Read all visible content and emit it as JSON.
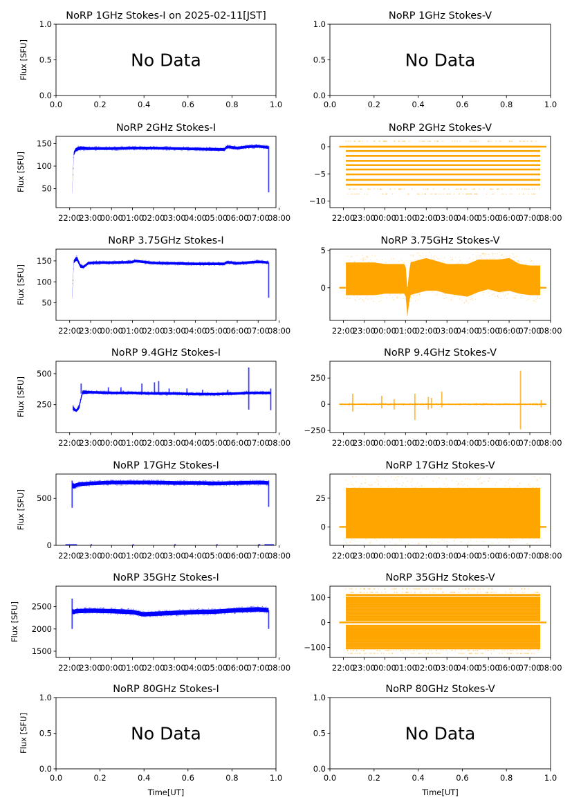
{
  "figure": {
    "x_label": "Time[UT]",
    "y_label": "Flux [SFU]",
    "no_data_text": "No Data",
    "colors": {
      "stokes_i": "#0000ff",
      "stokes_v": "#ffa500"
    }
  },
  "chart_data": [
    {
      "id": "1ghz-i",
      "type": "scatter",
      "title": "NoRP 1GHz Stokes-I on 2025-02-11[JST]",
      "no_data": true,
      "ylabel": "Flux [SFU]",
      "xlim": [
        0,
        1
      ],
      "ylim": [
        0,
        1
      ],
      "xticks": [
        0,
        0.2,
        0.4,
        0.6,
        0.8,
        1.0
      ],
      "xtick_labels": [
        "0.0",
        "0.2",
        "0.4",
        "0.6",
        "0.8",
        "1.0"
      ],
      "yticks": [
        0,
        0.5,
        1.0
      ],
      "ytick_labels": [
        "0.0",
        "0.5",
        "1.0"
      ]
    },
    {
      "id": "1ghz-v",
      "type": "scatter",
      "title": "NoRP 1GHz Stokes-V",
      "no_data": true,
      "ylabel": "",
      "xlim": [
        0,
        1
      ],
      "ylim": [
        0,
        1
      ],
      "xticks": [
        0,
        0.2,
        0.4,
        0.6,
        0.8,
        1.0
      ],
      "xtick_labels": [
        "0.0",
        "0.2",
        "0.4",
        "0.6",
        "0.8",
        "1.0"
      ],
      "yticks": [
        0,
        0.5,
        1.0
      ],
      "ytick_labels": [
        "0.0",
        "0.5",
        "1.0"
      ]
    },
    {
      "id": "2ghz-i",
      "type": "scatter",
      "title": "NoRP 2GHz Stokes-I",
      "series_color": "stokes_i",
      "ylabel": "Flux [SFU]",
      "xlim_hours": [
        21.35,
        31.85
      ],
      "ylim": [
        8,
        166
      ],
      "yticks": [
        50,
        100,
        150
      ],
      "ytick_labels": [
        "50",
        "100",
        "150"
      ],
      "band": {
        "t": [
          22.12,
          22.2,
          22.3,
          22.5,
          23,
          24,
          25,
          26,
          27,
          28,
          29,
          29.4,
          29.5,
          30,
          30.5,
          31,
          31.5
        ],
        "center": [
          40,
          130,
          137,
          140,
          139,
          139,
          140,
          140,
          139,
          138,
          137,
          137,
          143,
          140,
          143,
          144,
          141
        ],
        "halfwidth": [
          3,
          4,
          4,
          4,
          3,
          3,
          3,
          3,
          3,
          3,
          3,
          3,
          3,
          3,
          3,
          3,
          3
        ]
      },
      "spikes": [
        {
          "t": 31.5,
          "low": 42,
          "high": 144
        }
      ]
    },
    {
      "id": "2ghz-v",
      "type": "scatter",
      "title": "NoRP 2GHz Stokes-V",
      "series_color": "stokes_v",
      "ylabel": "",
      "xlim_hours": [
        21.35,
        32.0
      ],
      "ylim": [
        -11.2,
        1.9
      ],
      "yticks": [
        -10,
        -5,
        0
      ],
      "ytick_labels": [
        "−10",
        "−5",
        "0"
      ],
      "levels": [
        0,
        -0.8,
        -1.7,
        -2.6,
        -3.4,
        -4.2,
        -5.1,
        -6.1,
        -7.0
      ],
      "faint_levels": [
        1.0,
        -7.8,
        -8.7
      ],
      "zero_line": [
        21.8,
        31.8
      ],
      "data_range": [
        22.12,
        31.5
      ]
    },
    {
      "id": "3.75ghz-i",
      "type": "scatter",
      "title": "NoRP 3.75GHz Stokes-I",
      "series_color": "stokes_i",
      "ylabel": "Flux [SFU]",
      "xlim_hours": [
        21.35,
        31.85
      ],
      "ylim": [
        8,
        178
      ],
      "yticks": [
        50,
        100,
        150
      ],
      "ytick_labels": [
        "50",
        "100",
        "150"
      ],
      "band": {
        "t": [
          22.12,
          22.2,
          22.35,
          22.5,
          22.65,
          22.9,
          23.5,
          24,
          25,
          25.1,
          26,
          27,
          28,
          29,
          29.4,
          29.5,
          30,
          30.5,
          31,
          31.5
        ],
        "center": [
          62,
          150,
          156,
          138,
          135,
          145,
          146,
          146,
          147,
          150,
          145,
          144,
          143,
          143,
          143,
          147,
          144,
          146,
          148,
          146
        ],
        "halfwidth": [
          4,
          4,
          5,
          4,
          3,
          3,
          3,
          3,
          3,
          3,
          3,
          3,
          3,
          3,
          3,
          3,
          3,
          3,
          3,
          3
        ]
      },
      "spikes": [
        {
          "t": 31.5,
          "low": 62,
          "high": 146
        }
      ]
    },
    {
      "id": "3.75ghz-v",
      "type": "scatter",
      "title": "NoRP 3.75GHz Stokes-V",
      "series_color": "stokes_v",
      "ylabel": "",
      "xlim_hours": [
        21.35,
        32.0
      ],
      "ylim": [
        -4.4,
        5.2
      ],
      "yticks": [
        0,
        5
      ],
      "ytick_labels": [
        "0",
        "5"
      ],
      "band": {
        "t": [
          22.12,
          23.5,
          24,
          25,
          25.1,
          25.2,
          26,
          26.5,
          27,
          28,
          28.5,
          29,
          29.5,
          30,
          30.5,
          31,
          31.5
        ],
        "center": [
          1.2,
          1.2,
          1.2,
          1.2,
          -2.5,
          1.2,
          1.8,
          1.6,
          1.2,
          1.0,
          1.6,
          1.8,
          1.6,
          1.8,
          1.2,
          1.0,
          1.0
        ],
        "halfwidth": [
          2.2,
          2.2,
          2.0,
          2.0,
          1.8,
          2.2,
          2.2,
          2.0,
          2.0,
          2.2,
          2.2,
          2.0,
          2.2,
          2.2,
          2.0,
          2.0,
          2.0
        ]
      },
      "zero_line": [
        21.8,
        31.8
      ]
    },
    {
      "id": "9.4ghz-i",
      "type": "scatter",
      "title": "NoRP 9.4GHz Stokes-I",
      "series_color": "stokes_i",
      "ylabel": "Flux [SFU]",
      "xlim_hours": [
        21.35,
        31.85
      ],
      "ylim": [
        25,
        600
      ],
      "yticks": [
        250,
        500
      ],
      "ytick_labels": [
        "250",
        "500"
      ],
      "band": {
        "t": [
          22.15,
          22.3,
          22.45,
          22.6,
          23,
          24,
          25,
          26,
          27,
          28,
          29,
          30,
          30.5,
          31,
          31.6
        ],
        "center": [
          225,
          200,
          225,
          350,
          350,
          345,
          345,
          340,
          340,
          335,
          335,
          340,
          345,
          345,
          345
        ],
        "halfwidth": [
          20,
          8,
          18,
          15,
          10,
          10,
          10,
          10,
          10,
          10,
          10,
          10,
          10,
          10,
          10
        ]
      },
      "spikes": [
        {
          "t": 22.55,
          "low": 340,
          "high": 420
        },
        {
          "t": 23.85,
          "low": 340,
          "high": 390
        },
        {
          "t": 24.45,
          "low": 340,
          "high": 390
        },
        {
          "t": 25.45,
          "low": 340,
          "high": 420
        },
        {
          "t": 26.05,
          "low": 340,
          "high": 430
        },
        {
          "t": 26.25,
          "low": 340,
          "high": 440
        },
        {
          "t": 26.75,
          "low": 340,
          "high": 380
        },
        {
          "t": 27.6,
          "low": 340,
          "high": 380
        },
        {
          "t": 28.35,
          "low": 340,
          "high": 370
        },
        {
          "t": 29.55,
          "low": 340,
          "high": 370
        },
        {
          "t": 30.55,
          "low": 210,
          "high": 550
        },
        {
          "t": 31.6,
          "low": 205,
          "high": 380
        }
      ]
    },
    {
      "id": "9.4ghz-v",
      "type": "scatter",
      "title": "NoRP 9.4GHz Stokes-V",
      "series_color": "stokes_v",
      "ylabel": "",
      "xlim_hours": [
        21.35,
        32.0
      ],
      "ylim": [
        -270,
        410
      ],
      "yticks": [
        -250,
        0,
        250
      ],
      "ytick_labels": [
        "−250",
        "0",
        "250"
      ],
      "band": {
        "t": [
          21.8,
          31.8
        ],
        "center": [
          0,
          0
        ],
        "halfwidth": [
          6,
          6
        ]
      },
      "spikes": [
        {
          "t": 22.45,
          "low": -70,
          "high": 100
        },
        {
          "t": 23.85,
          "low": -40,
          "high": 80
        },
        {
          "t": 24.45,
          "low": -50,
          "high": 50
        },
        {
          "t": 25.45,
          "low": -150,
          "high": 100
        },
        {
          "t": 26.1,
          "low": -50,
          "high": 70
        },
        {
          "t": 26.25,
          "low": -40,
          "high": 60
        },
        {
          "t": 26.75,
          "low": -30,
          "high": 120
        },
        {
          "t": 30.55,
          "low": -240,
          "high": 320
        },
        {
          "t": 31.55,
          "low": -30,
          "high": 40
        }
      ]
    },
    {
      "id": "17ghz-i",
      "type": "scatter",
      "title": "NoRP 17GHz Stokes-I",
      "series_color": "stokes_i",
      "ylabel": "Flux [SFU]",
      "xlim_hours": [
        21.35,
        31.85
      ],
      "ylim": [
        0,
        760
      ],
      "yticks": [
        0,
        500
      ],
      "ytick_labels": [
        "0",
        "500"
      ],
      "band": {
        "t": [
          22.12,
          22.2,
          22.4,
          23,
          24,
          25,
          26,
          27,
          28,
          29,
          30,
          31,
          31.5
        ],
        "center": [
          640,
          630,
          650,
          660,
          670,
          670,
          670,
          665,
          665,
          660,
          665,
          670,
          665
        ],
        "halfwidth": [
          30,
          25,
          20,
          20,
          20,
          20,
          20,
          20,
          20,
          20,
          20,
          20,
          20
        ]
      },
      "spikes": [
        {
          "t": 22.12,
          "low": 400,
          "high": 690
        },
        {
          "t": 31.5,
          "low": 410,
          "high": 690
        }
      ],
      "zero_marks": [
        [
          21.8,
          22.35
        ],
        [
          23.0,
          23.05
        ],
        [
          25.0,
          25.05
        ],
        [
          27.0,
          27.05
        ],
        [
          29.0,
          29.05
        ],
        [
          31.0,
          31.1
        ],
        [
          31.3,
          31.75
        ]
      ]
    },
    {
      "id": "17ghz-v",
      "type": "scatter",
      "title": "NoRP 17GHz Stokes-V",
      "series_color": "stokes_v",
      "ylabel": "",
      "xlim_hours": [
        21.35,
        32.0
      ],
      "ylim": [
        -16,
        46
      ],
      "yticks": [
        0,
        25
      ],
      "ytick_labels": [
        "0",
        "25"
      ],
      "band": {
        "t": [
          22.12,
          31.5
        ],
        "center": [
          12,
          12
        ],
        "halfwidth": [
          22,
          22
        ]
      },
      "zero_line": [
        21.8,
        31.8
      ]
    },
    {
      "id": "35ghz-i",
      "type": "scatter",
      "title": "NoRP 35GHz Stokes-I",
      "series_color": "stokes_i",
      "ylabel": "Flux [SFU]",
      "xlim_hours": [
        21.35,
        31.85
      ],
      "ylim": [
        1360,
        2960
      ],
      "yticks": [
        1500,
        2000,
        2500
      ],
      "ytick_labels": [
        "1500",
        "2000",
        "2500"
      ],
      "band": {
        "t": [
          22.12,
          22.2,
          22.3,
          23,
          24,
          25,
          25.5,
          26,
          27,
          28,
          29,
          30,
          31,
          31.5
        ],
        "center": [
          2400,
          2380,
          2400,
          2410,
          2400,
          2380,
          2330,
          2340,
          2360,
          2380,
          2390,
          2420,
          2440,
          2420
        ],
        "halfwidth": [
          60,
          50,
          50,
          50,
          50,
          50,
          50,
          50,
          50,
          50,
          50,
          50,
          50,
          50
        ]
      },
      "spikes": [
        {
          "t": 22.12,
          "low": 2000,
          "high": 2680
        },
        {
          "t": 31.5,
          "low": 2000,
          "high": 2420
        }
      ]
    },
    {
      "id": "35ghz-v",
      "type": "scatter",
      "title": "NoRP 35GHz Stokes-V",
      "series_color": "stokes_v",
      "ylabel": "",
      "xlim_hours": [
        21.35,
        32.0
      ],
      "ylim": [
        -140,
        145
      ],
      "yticks": [
        -100,
        0,
        100
      ],
      "ytick_labels": [
        "−100",
        "0",
        "100"
      ],
      "levels": [
        110,
        100,
        93,
        86,
        79,
        72,
        65,
        58,
        51,
        44,
        37,
        30,
        23,
        16,
        9,
        -13,
        -20,
        -27,
        -34,
        -41,
        -48,
        -55,
        -62,
        -69,
        -76,
        -83,
        -90,
        -97,
        -104
      ],
      "faint_levels": [
        120,
        134,
        -113,
        -124
      ],
      "zero_line": [
        21.8,
        31.8
      ],
      "data_range": [
        22.12,
        31.5
      ]
    },
    {
      "id": "80ghz-i",
      "type": "scatter",
      "title": "NoRP 80GHz Stokes-I",
      "no_data": true,
      "ylabel": "Flux [SFU]",
      "xlabel": "Time[UT]",
      "xlim": [
        0,
        1
      ],
      "ylim": [
        0,
        1
      ],
      "xticks": [
        0,
        0.2,
        0.4,
        0.6,
        0.8,
        1.0
      ],
      "xtick_labels": [
        "0.0",
        "0.2",
        "0.4",
        "0.6",
        "0.8",
        "1.0"
      ],
      "yticks": [
        0,
        0.5,
        1.0
      ],
      "ytick_labels": [
        "0.0",
        "0.5",
        "1.0"
      ]
    },
    {
      "id": "80ghz-v",
      "type": "scatter",
      "title": "NoRP 80GHz Stokes-V",
      "no_data": true,
      "ylabel": "",
      "xlabel": "Time[UT]",
      "xlim": [
        0,
        1
      ],
      "ylim": [
        0,
        1
      ],
      "xticks": [
        0,
        0.2,
        0.4,
        0.6,
        0.8,
        1.0
      ],
      "xtick_labels": [
        "0.0",
        "0.2",
        "0.4",
        "0.6",
        "0.8",
        "1.0"
      ],
      "yticks": [
        0,
        0.5,
        1.0
      ],
      "ytick_labels": [
        "0.0",
        "0.5",
        "1.0"
      ]
    }
  ],
  "time_axis": {
    "tick_hours": [
      22,
      23,
      24,
      25,
      26,
      27,
      28,
      29,
      30,
      31,
      32
    ],
    "tick_labels": [
      "22:00",
      "23:00",
      "00:00",
      "01:00",
      "02:00",
      "03:00",
      "04:00",
      "05:00",
      "06:00",
      "07:00",
      "08:00"
    ]
  }
}
